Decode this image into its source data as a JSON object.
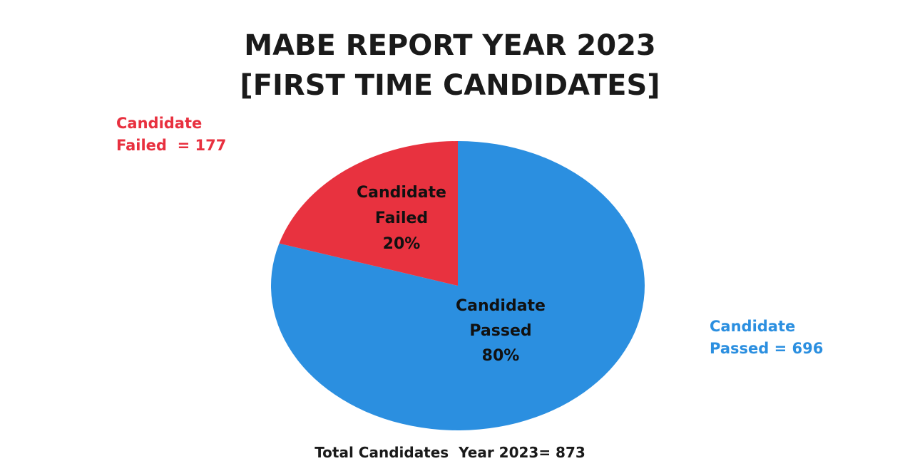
{
  "title": {
    "line1": "MABE REPORT YEAR 2023",
    "line2": "[FIRST TIME CANDIDATES]"
  },
  "callouts": {
    "failed": "Candidate\nFailed  = 177",
    "passed": "Candidate\nPassed = 696"
  },
  "footer": "Total Candidates  Year 2023= 873",
  "chart_data": {
    "type": "pie",
    "slices": [
      {
        "label": "Candidate Failed",
        "value": 177,
        "percent_label": "20%",
        "color": "#e8323f"
      },
      {
        "label": "Candidate Passed",
        "value": 696,
        "percent_label": "80%",
        "color": "#2b8fe0"
      }
    ],
    "slice_label_lines": {
      "failed": [
        "Candidate",
        "Failed",
        "20%"
      ],
      "passed": [
        "Candidate",
        "Passed",
        "80%"
      ]
    }
  }
}
